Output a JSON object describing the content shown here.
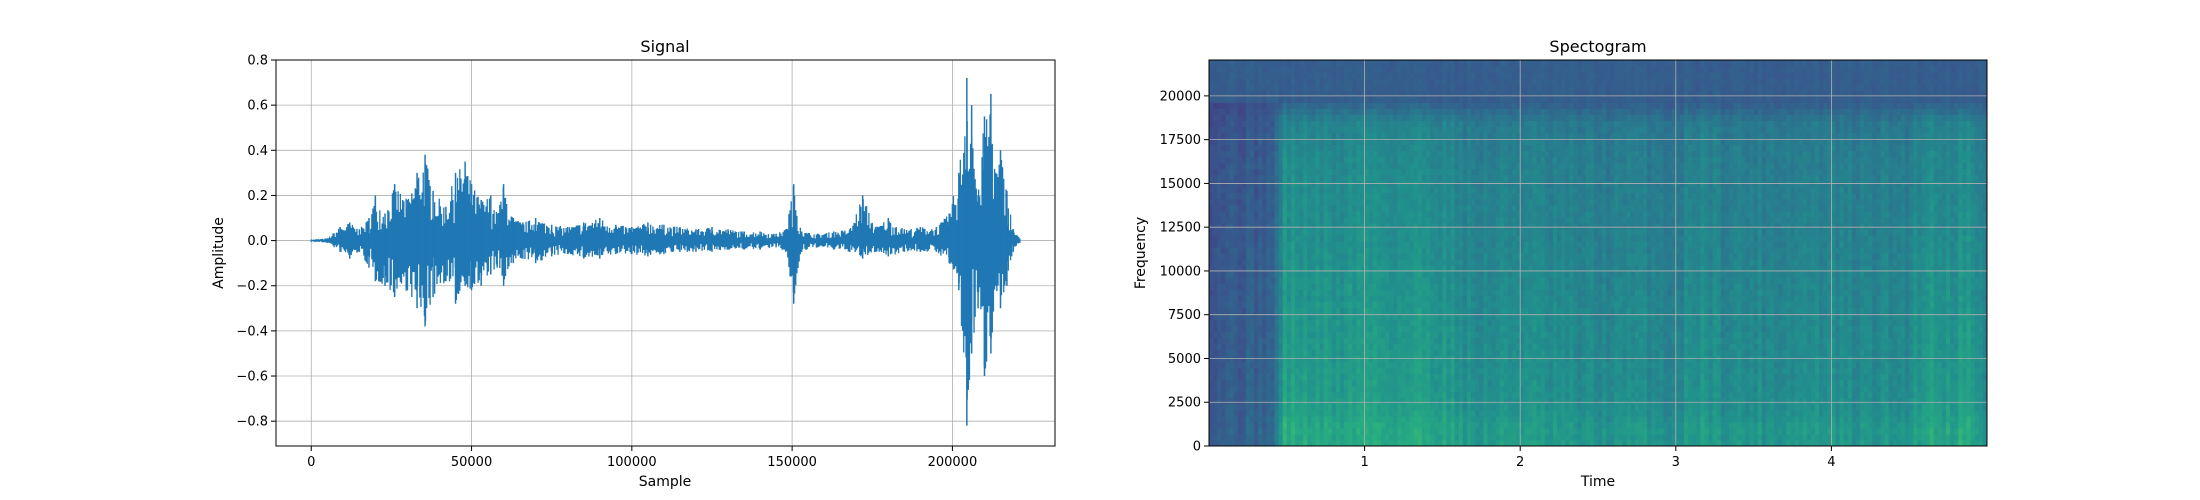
{
  "chart_data": [
    {
      "type": "line",
      "title": "Signal",
      "xlabel": "Sample",
      "ylabel": "Amplitude",
      "xlim": [
        -11000,
        232000
      ],
      "ylim": [
        -0.91,
        0.8
      ],
      "xticks": [
        0,
        50000,
        100000,
        150000,
        200000
      ],
      "xtick_labels": [
        "0",
        "50000",
        "100000",
        "150000",
        "200000"
      ],
      "yticks": [
        -0.8,
        -0.6,
        -0.4,
        -0.2,
        0.0,
        0.2,
        0.4,
        0.6,
        0.8
      ],
      "ytick_labels": [
        "−0.8",
        "−0.6",
        "−0.4",
        "−0.2",
        "0.0",
        "0.2",
        "0.4",
        "0.6",
        "0.8"
      ],
      "grid": true,
      "color": "#1f77b4",
      "series": [
        {
          "x": [
            0,
            5000,
            9000,
            12000,
            15000,
            18000,
            20000,
            23000,
            26000,
            30000,
            33000,
            35500,
            38000,
            42000,
            45000,
            48000,
            50000,
            53000,
            56000,
            58000,
            60000,
            63000,
            66000,
            70000,
            75000,
            80000,
            85000,
            90000,
            95000,
            100000,
            105000,
            110000,
            115000,
            120000,
            125000,
            130000,
            135000,
            140000,
            145000,
            148000,
            150500,
            153000,
            158000,
            163000,
            168000,
            172000,
            176000,
            180000,
            185000,
            190000,
            195000,
            199000,
            202000,
            204500,
            206000,
            208000,
            210000,
            212000,
            213500,
            215000,
            217000,
            219000,
            221000
          ],
          "max": [
            0.005,
            0.01,
            0.06,
            0.08,
            0.05,
            0.1,
            0.2,
            0.12,
            0.25,
            0.18,
            0.3,
            0.38,
            0.22,
            0.15,
            0.3,
            0.35,
            0.25,
            0.18,
            0.2,
            0.12,
            0.25,
            0.1,
            0.08,
            0.1,
            0.07,
            0.06,
            0.08,
            0.1,
            0.07,
            0.06,
            0.08,
            0.07,
            0.06,
            0.05,
            0.06,
            0.05,
            0.04,
            0.04,
            0.03,
            0.05,
            0.25,
            0.04,
            0.03,
            0.04,
            0.05,
            0.2,
            0.06,
            0.1,
            0.05,
            0.06,
            0.06,
            0.12,
            0.3,
            0.72,
            0.6,
            0.2,
            0.55,
            0.65,
            0.3,
            0.4,
            0.22,
            0.05,
            0.01
          ],
          "min": [
            -0.005,
            -0.01,
            -0.05,
            -0.08,
            -0.05,
            -0.12,
            -0.18,
            -0.2,
            -0.25,
            -0.22,
            -0.3,
            -0.38,
            -0.25,
            -0.18,
            -0.28,
            -0.2,
            -0.22,
            -0.2,
            -0.15,
            -0.12,
            -0.2,
            -0.1,
            -0.08,
            -0.1,
            -0.07,
            -0.06,
            -0.08,
            -0.08,
            -0.06,
            -0.06,
            -0.07,
            -0.06,
            -0.05,
            -0.05,
            -0.05,
            -0.04,
            -0.04,
            -0.04,
            -0.03,
            -0.05,
            -0.28,
            -0.05,
            -0.03,
            -0.04,
            -0.05,
            -0.08,
            -0.05,
            -0.07,
            -0.05,
            -0.05,
            -0.05,
            -0.1,
            -0.22,
            -0.82,
            -0.5,
            -0.3,
            -0.6,
            -0.5,
            -0.2,
            -0.3,
            -0.2,
            -0.05,
            -0.01
          ]
        }
      ]
    },
    {
      "type": "heatmap",
      "title": "Spectogram",
      "xlabel": "Time",
      "ylabel": "Frequency",
      "xlim": [
        0,
        5.0
      ],
      "ylim": [
        0,
        22050
      ],
      "xticks": [
        1,
        2,
        3,
        4
      ],
      "xtick_labels": [
        "1",
        "2",
        "3",
        "4"
      ],
      "yticks": [
        0,
        2500,
        5000,
        7500,
        10000,
        12500,
        15000,
        17500,
        20000
      ],
      "ytick_labels": [
        "0",
        "2500",
        "5000",
        "7500",
        "10000",
        "12500",
        "15000",
        "17500",
        "20000"
      ],
      "grid": true,
      "colormap": "viridis",
      "time_energy": {
        "t": [
          0.0,
          0.3,
          0.42,
          0.48,
          0.6,
          0.8,
          1.0,
          1.2,
          1.4,
          1.55,
          1.7,
          2.0,
          2.2,
          2.5,
          2.8,
          3.0,
          3.15,
          3.3,
          3.6,
          3.9,
          4.2,
          4.5,
          4.6,
          4.75,
          4.9,
          5.0
        ],
        "level": [
          0.22,
          0.25,
          0.3,
          0.78,
          0.74,
          0.7,
          0.78,
          0.72,
          0.75,
          0.7,
          0.6,
          0.66,
          0.6,
          0.58,
          0.6,
          0.55,
          0.68,
          0.6,
          0.6,
          0.62,
          0.58,
          0.6,
          0.75,
          0.7,
          0.78,
          0.5
        ]
      },
      "freq_profile": {
        "f": [
          0,
          500,
          1000,
          2000,
          3000,
          5000,
          8000,
          12000,
          16000,
          18500,
          19500,
          20000,
          22050
        ],
        "level": [
          0.95,
          0.92,
          0.95,
          0.85,
          0.82,
          0.8,
          0.76,
          0.7,
          0.66,
          0.6,
          0.35,
          0.25,
          0.2
        ]
      }
    }
  ]
}
